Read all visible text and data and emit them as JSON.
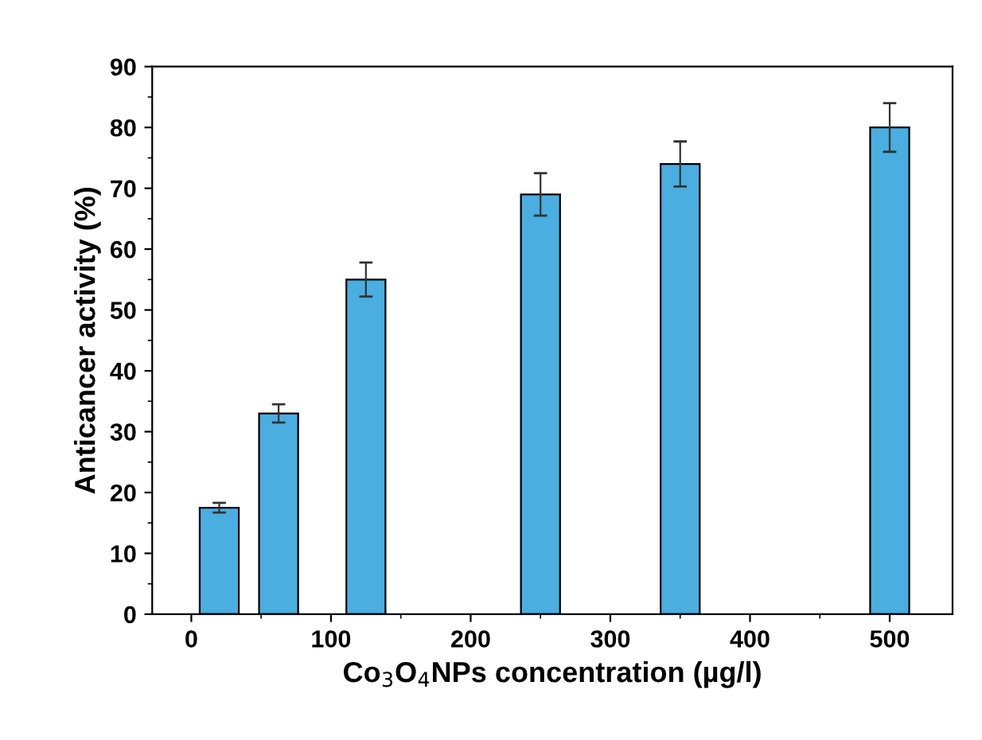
{
  "chart_data": {
    "type": "bar",
    "xlabel": "Co$_{3}$O$_{4}$NPs concentration (µg/l)",
    "ylabel": "Anticancer activity (%)",
    "x": [
      20,
      62.5,
      125,
      250,
      350,
      500
    ],
    "series": [
      {
        "color": "#4aaee0",
        "values": [
          17.5,
          33,
          55,
          69,
          74,
          80
        ],
        "errors": [
          0.8,
          1.5,
          2.8,
          3.5,
          3.7,
          4
        ]
      }
    ],
    "xlim": [
      -28,
      545
    ],
    "xticks": [
      0,
      100,
      200,
      300,
      400,
      500
    ],
    "ylim": [
      0,
      90
    ],
    "yticks": [
      0,
      10,
      20,
      30,
      40,
      50,
      60,
      70,
      80,
      90
    ],
    "grid": false,
    "legend": false
  }
}
